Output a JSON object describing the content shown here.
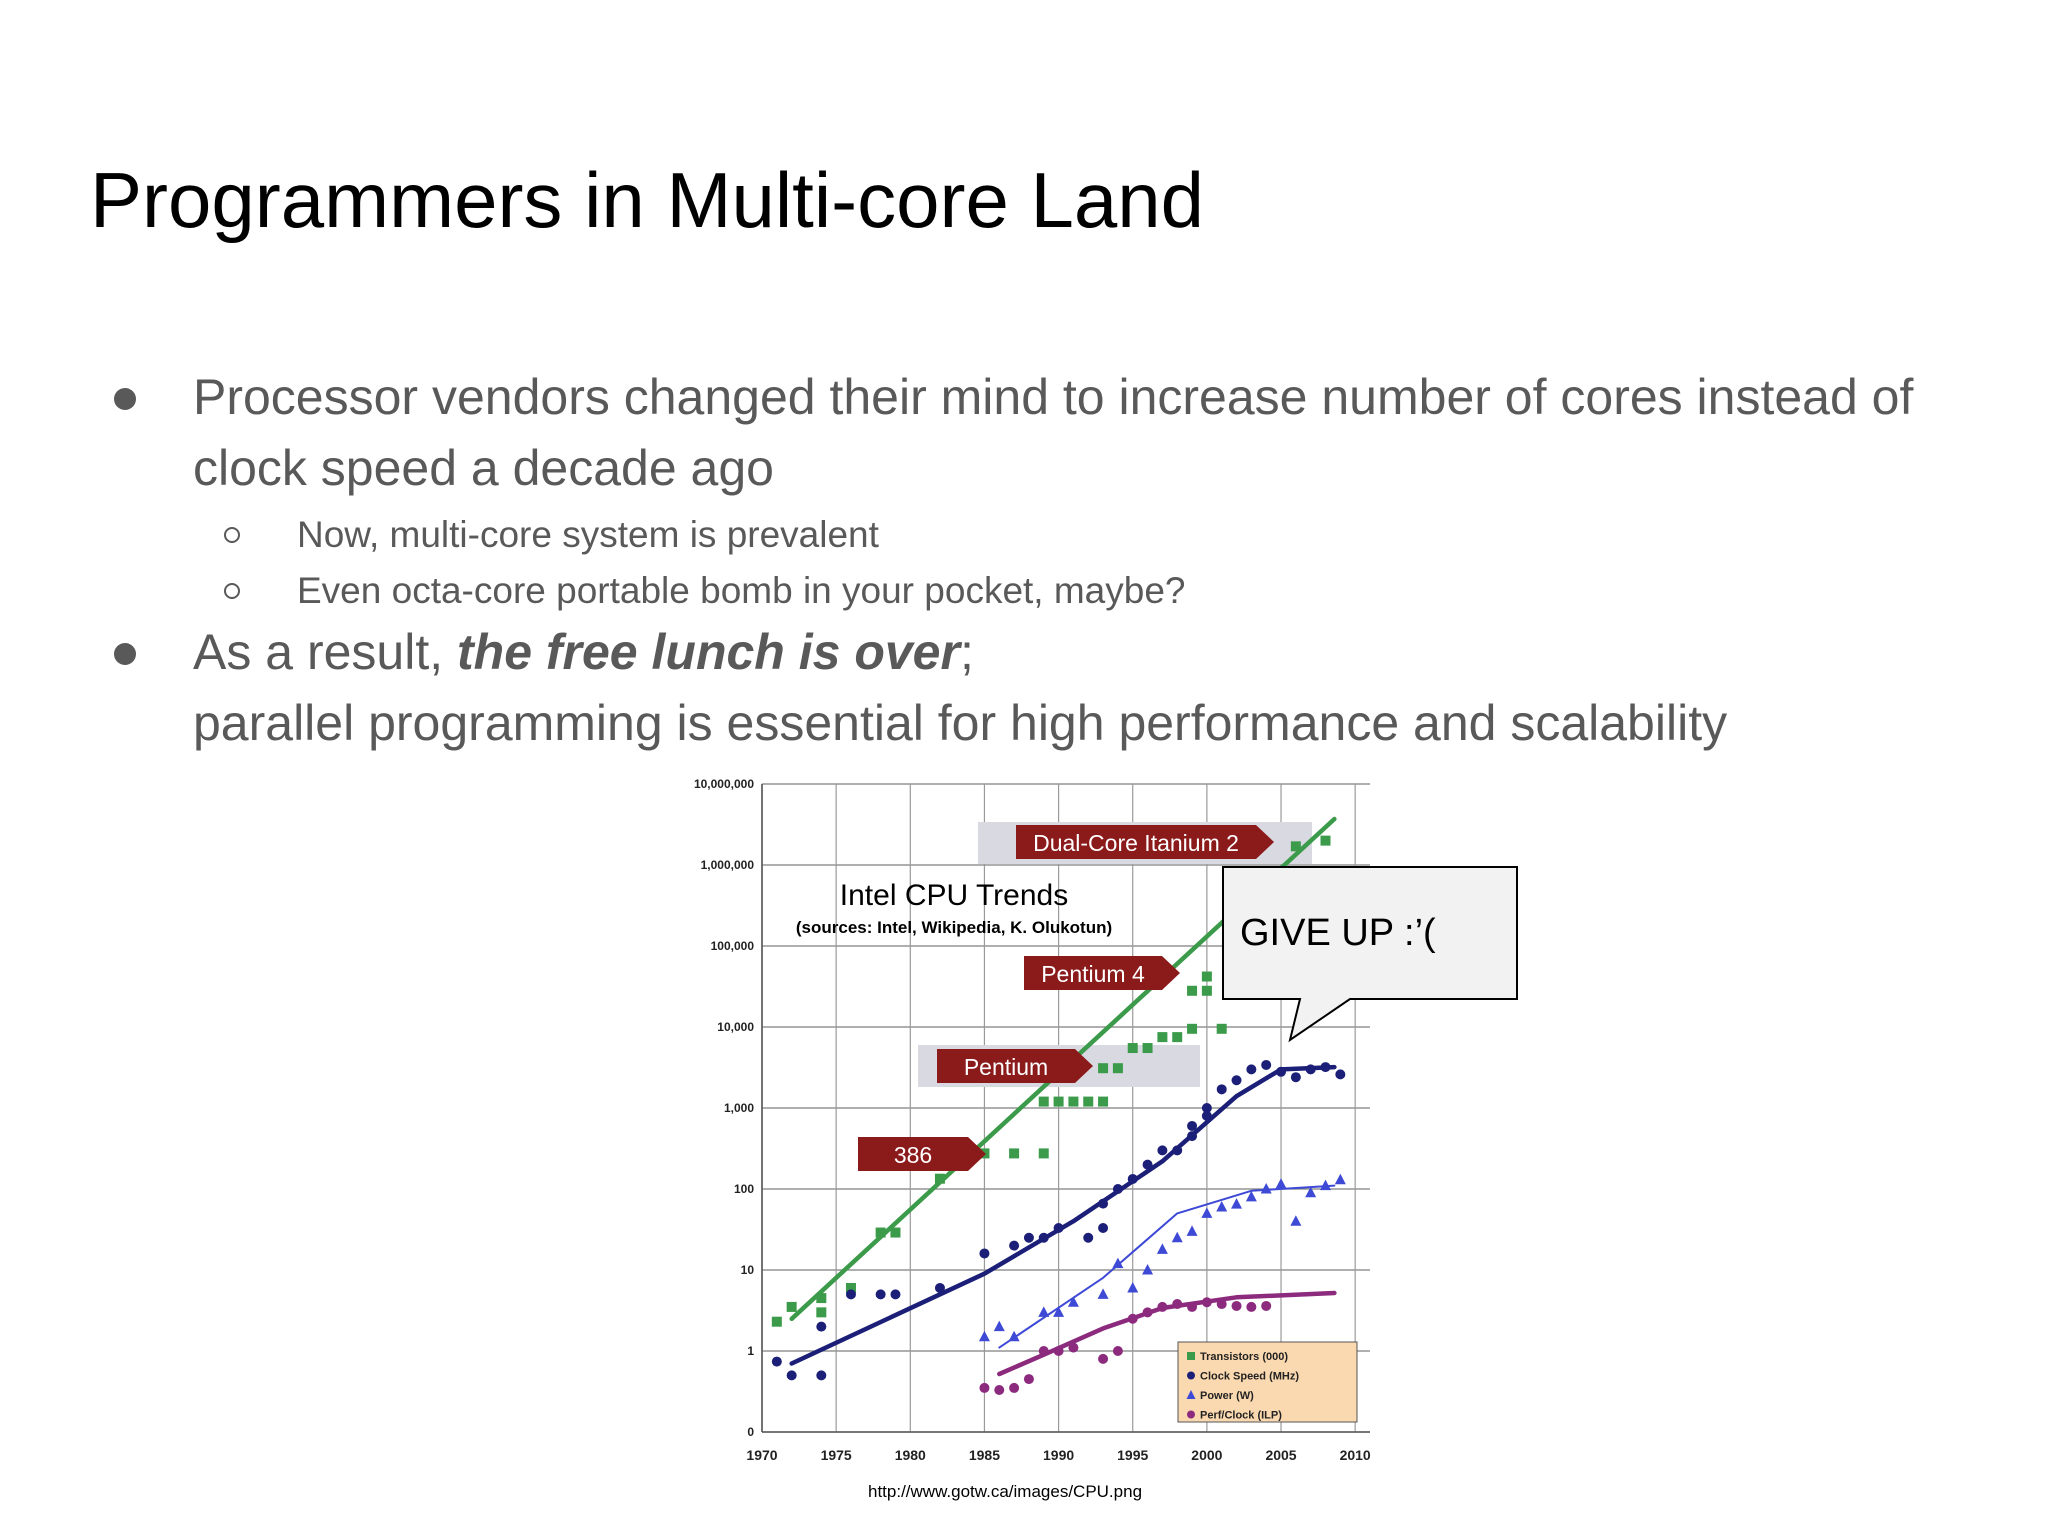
{
  "slide": {
    "title": "Programmers in Multi-core Land",
    "bullet1_line1": "Processor vendors changed their mind to increase number of cores instead of",
    "bullet1_line2": "clock speed a decade ago",
    "sub1": "Now, multi-core system is prevalent",
    "sub2": "Even octa-core portable bomb in your pocket, maybe?",
    "bullet2_prefix": "As a result, ",
    "bullet2_emph": "the free lunch is over",
    "bullet2_suffix": ";",
    "bullet2_line2": "parallel programming is essential for high performance and scalability",
    "source_url": "http://www.gotw.ca/images/CPU.png",
    "callout": "GIVE UP :’("
  },
  "chart_data": {
    "type": "scatter",
    "title": "Intel CPU Trends",
    "subtitle": "(sources: Intel, Wikipedia, K. Olukotun)",
    "scale": "log",
    "xlim": [
      1970,
      2010
    ],
    "x_ticks": [
      "1970",
      "1975",
      "1980",
      "1985",
      "1990",
      "1995",
      "2000",
      "2005",
      "2010"
    ],
    "y_ticks": [
      "0",
      "1",
      "10",
      "100",
      "1,000",
      "10,000",
      "100,000",
      "1,000,000",
      "10,000,000"
    ],
    "annotations": [
      {
        "label": "386",
        "year": 1985,
        "value": 300
      },
      {
        "label": "Pentium",
        "year": 1993,
        "value": 3000
      },
      {
        "label": "Pentium 4",
        "year": 2000,
        "value": 50000
      },
      {
        "label": "Dual-Core Itanium 2",
        "year": 2006,
        "value": 1200000
      }
    ],
    "legend": [
      "Transistors (000)",
      "Clock Speed (MHz)",
      "Power (W)",
      "Perf/Clock (ILP)"
    ],
    "legend_position": "bottom-right",
    "grid": true,
    "series": [
      {
        "name": "Transistors (000)",
        "color": "#3c9b4a",
        "marker": "square",
        "points": [
          [
            1971,
            2.3
          ],
          [
            1972,
            3.5
          ],
          [
            1974,
            4.5
          ],
          [
            1974,
            3
          ],
          [
            1976,
            6
          ],
          [
            1978,
            29
          ],
          [
            1979,
            29
          ],
          [
            1982,
            134
          ],
          [
            1985,
            275
          ],
          [
            1987,
            275
          ],
          [
            1989,
            275
          ],
          [
            1989,
            1200
          ],
          [
            1990,
            1200
          ],
          [
            1991,
            1200
          ],
          [
            1992,
            1200
          ],
          [
            1993,
            3100
          ],
          [
            1993,
            1200
          ],
          [
            1994,
            3100
          ],
          [
            1995,
            5500
          ],
          [
            1996,
            5500
          ],
          [
            1997,
            7500
          ],
          [
            1998,
            7500
          ],
          [
            1999,
            9500
          ],
          [
            1999,
            28000
          ],
          [
            2000,
            42000
          ],
          [
            2000,
            28000
          ],
          [
            2001,
            9500
          ],
          [
            2002,
            55000
          ],
          [
            2003,
            125000
          ],
          [
            2004,
            125000
          ],
          [
            2006,
            1700000
          ],
          [
            2008,
            2000000
          ]
        ],
        "trend": [
          [
            1972,
            2.5
          ],
          [
            2008.6,
            3700000
          ]
        ]
      },
      {
        "name": "Clock Speed (MHz)",
        "color": "#1c1f78",
        "marker": "circle",
        "points": [
          [
            1971,
            0.74
          ],
          [
            1972,
            0.5
          ],
          [
            1974,
            2
          ],
          [
            1974,
            0.5
          ],
          [
            1976,
            5
          ],
          [
            1978,
            5
          ],
          [
            1979,
            5
          ],
          [
            1982,
            6
          ],
          [
            1985,
            16
          ],
          [
            1987,
            20
          ],
          [
            1988,
            25
          ],
          [
            1989,
            25
          ],
          [
            1990,
            33
          ],
          [
            1992,
            25
          ],
          [
            1993,
            66
          ],
          [
            1993,
            33
          ],
          [
            1994,
            100
          ],
          [
            1995,
            133
          ],
          [
            1996,
            200
          ],
          [
            1997,
            300
          ],
          [
            1998,
            300
          ],
          [
            1999,
            450
          ],
          [
            1999,
            600
          ],
          [
            2000,
            1000
          ],
          [
            2000,
            800
          ],
          [
            2001,
            1700
          ],
          [
            2002,
            2200
          ],
          [
            2003,
            3000
          ],
          [
            2004,
            3400
          ],
          [
            2005,
            2800
          ],
          [
            2006,
            2400
          ],
          [
            2007,
            3000
          ],
          [
            2008,
            3200
          ],
          [
            2009,
            2600
          ]
        ],
        "trend": [
          [
            1972,
            0.7
          ],
          [
            1985,
            9
          ],
          [
            1991,
            40
          ],
          [
            1997,
            220
          ],
          [
            2002,
            1400
          ],
          [
            2005,
            3000
          ],
          [
            2008.6,
            3200
          ]
        ]
      },
      {
        "name": "Power (W)",
        "color": "#3e4ad6",
        "marker": "triangle",
        "points": [
          [
            1985,
            1.5
          ],
          [
            1986,
            2
          ],
          [
            1987,
            1.5
          ],
          [
            1989,
            3
          ],
          [
            1990,
            3
          ],
          [
            1991,
            4
          ],
          [
            1993,
            5
          ],
          [
            1994,
            12
          ],
          [
            1995,
            6
          ],
          [
            1996,
            10
          ],
          [
            1997,
            18
          ],
          [
            1998,
            25
          ],
          [
            1999,
            30
          ],
          [
            2000,
            50
          ],
          [
            2001,
            60
          ],
          [
            2002,
            65
          ],
          [
            2003,
            80
          ],
          [
            2004,
            100
          ],
          [
            2005,
            115
          ],
          [
            2006,
            40
          ],
          [
            2007,
            90
          ],
          [
            2008,
            110
          ],
          [
            2009,
            130
          ]
        ],
        "trend": [
          [
            1986,
            1.1
          ],
          [
            1993,
            8
          ],
          [
            1998,
            50
          ],
          [
            2003,
            95
          ],
          [
            2008.6,
            110
          ]
        ]
      },
      {
        "name": "Perf/Clock (ILP)",
        "color": "#8c2b7e",
        "marker": "circle",
        "points": [
          [
            1985,
            0.35
          ],
          [
            1986,
            0.33
          ],
          [
            1987,
            0.35
          ],
          [
            1988,
            0.45
          ],
          [
            1989,
            1
          ],
          [
            1990,
            1
          ],
          [
            1991,
            1.1
          ],
          [
            1993,
            0.8
          ],
          [
            1994,
            1
          ],
          [
            1995,
            2.5
          ],
          [
            1996,
            3
          ],
          [
            1997,
            3.5
          ],
          [
            1998,
            3.8
          ],
          [
            1999,
            3.5
          ],
          [
            2000,
            4
          ],
          [
            2001,
            3.8
          ],
          [
            2002,
            3.6
          ],
          [
            2003,
            3.5
          ],
          [
            2004,
            3.6
          ]
        ],
        "trend": [
          [
            1986,
            0.52
          ],
          [
            1989,
            0.9
          ],
          [
            1993,
            1.9
          ],
          [
            1997,
            3.4
          ],
          [
            2002,
            4.6
          ],
          [
            2008.6,
            5.2
          ]
        ]
      }
    ]
  }
}
